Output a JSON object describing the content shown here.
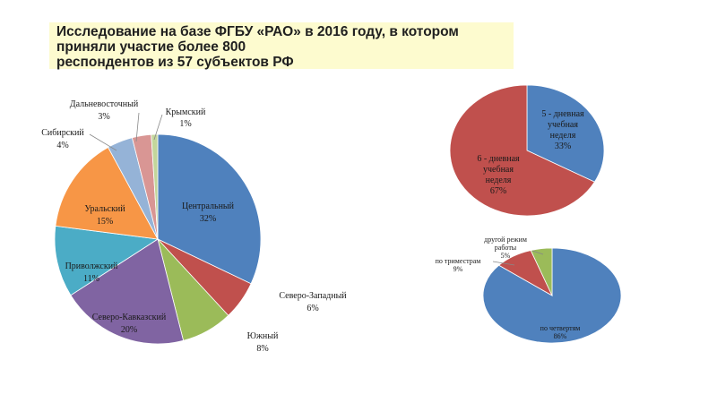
{
  "title": {
    "lines": [
      "Исследование на базе ФГБУ «РАО» в 2016 году, в котором",
      "приняли участие более 800",
      "респондентов  из 57 субъектов РФ"
    ]
  },
  "chart_data": [
    {
      "type": "pie",
      "title": "",
      "slices": [
        {
          "name": "Центральный",
          "value": 32,
          "label": "32%",
          "color": "#4f81bd"
        },
        {
          "name": "Северо-Западный",
          "value": 6,
          "label": "6%",
          "color": "#c0504d"
        },
        {
          "name": "Южный",
          "value": 8,
          "label": "8%",
          "color": "#9bbb59"
        },
        {
          "name": "Северо-Кавказский",
          "value": 20,
          "label": "20%",
          "color": "#8064a2"
        },
        {
          "name": "Приволжский",
          "value": 11,
          "label": "11%",
          "color": "#4bacc6"
        },
        {
          "name": "Уральский",
          "value": 15,
          "label": "15%",
          "color": "#f79646"
        },
        {
          "name": "Сибирский",
          "value": 4,
          "label": "4%",
          "color": "#95b3d7"
        },
        {
          "name": "Дальневосточный",
          "value": 3,
          "label": "3%",
          "color": "#d99694"
        },
        {
          "name": "Крымский",
          "value": 1,
          "label": "1%",
          "color": "#c3d69b"
        }
      ]
    },
    {
      "type": "pie",
      "title": "",
      "slices": [
        {
          "name": "5 - дневная учебная неделя",
          "lines": [
            "5 - дневная",
            "учебная",
            "неделя"
          ],
          "value": 33,
          "label": "33%",
          "color": "#4f81bd"
        },
        {
          "name": "6 - дневная учебная неделя",
          "lines": [
            "6 - дневная",
            "учебная",
            "неделя"
          ],
          "value": 67,
          "label": "67%",
          "color": "#c0504d"
        }
      ]
    },
    {
      "type": "pie",
      "title": "",
      "slices": [
        {
          "name": "по четвертям",
          "lines": [
            "по четвертям"
          ],
          "value": 86,
          "label": "86%",
          "color": "#4f81bd"
        },
        {
          "name": "по триместрам",
          "lines": [
            "по триместрам"
          ],
          "value": 9,
          "label": "9%",
          "color": "#c0504d"
        },
        {
          "name": "другой режим работы",
          "lines": [
            "другой режим",
            "работы"
          ],
          "value": 5,
          "label": "5%",
          "color": "#9bbb59"
        }
      ]
    }
  ]
}
